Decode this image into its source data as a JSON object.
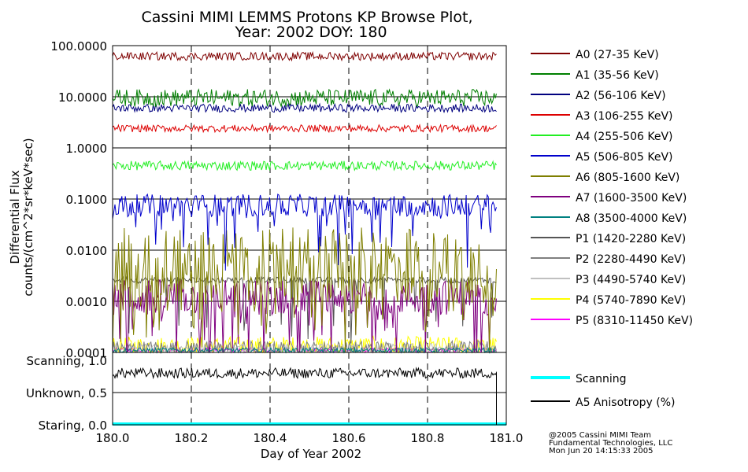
{
  "chart_data": {
    "type": "line",
    "title": "Cassini MIMI LEMMS Protons KP Browse Plot,",
    "subtitle": "Year: 2002 DOY: 180",
    "xlabel": "Day of Year 2002",
    "ylabel_line1": "Differential Flux",
    "ylabel_line2": "counts/(cm^2*sr*keV*sec)",
    "y_scale": "log",
    "ylim": [
      0.0001,
      100
    ],
    "xlim": [
      180.0,
      181.0
    ],
    "x_ticks": [
      "180.0",
      "180.2",
      "180.4",
      "180.6",
      "180.8",
      "181.0"
    ],
    "x_tick_values": [
      180.0,
      180.2,
      180.4,
      180.6,
      180.8,
      181.0
    ],
    "y_ticks": [
      "100.0000",
      "10.0000",
      "1.0000",
      "0.1000",
      "0.0100",
      "0.0010",
      "0.0001"
    ],
    "y_tick_values": [
      100,
      10,
      1,
      0.1,
      0.01,
      0.001,
      0.0001
    ],
    "x_end": 180.975,
    "series": [
      {
        "name": "A0 (27-35 KeV)",
        "color": "#7f0000",
        "level": 62,
        "spread": 0.08,
        "dips": 0
      },
      {
        "name": "A1 (35-56 KeV)",
        "color": "#007f00",
        "level": 9.5,
        "spread": 0.17,
        "dips": 0
      },
      {
        "name": "A2 (56-106 KeV)",
        "color": "#00007f",
        "level": 6.0,
        "spread": 0.08,
        "dips": 0
      },
      {
        "name": "A3 (106-255 KeV)",
        "color": "#dd0000",
        "level": 2.4,
        "spread": 0.07,
        "dips": 0
      },
      {
        "name": "A4 (255-506 KeV)",
        "color": "#22ee22",
        "level": 0.45,
        "spread": 0.09,
        "dips": 0
      },
      {
        "name": "A5 (506-805 KeV)",
        "color": "#0000cc",
        "level": 0.075,
        "spread": 0.22,
        "dips": 0.12
      },
      {
        "name": "A6 (805-1600 KeV)",
        "color": "#7f7f00",
        "level": 0.005,
        "spread": 0.75,
        "dips": 0.3
      },
      {
        "name": "A7 (1600-3500 KeV)",
        "color": "#7f007f",
        "level": 0.0012,
        "spread": 0.35,
        "dips": 0.25
      },
      {
        "name": "A8 (3500-4000 KeV)",
        "color": "#008080",
        "level": 0.00011,
        "spread": 0.05,
        "dips": 0
      },
      {
        "name": "P1 (1420-2280 KeV)",
        "color": "#555555",
        "level": 0.0026,
        "spread": 0.06,
        "dips": 0.1
      },
      {
        "name": "P2 (2280-4490 KeV)",
        "color": "#7f7f7f",
        "level": 0.00012,
        "spread": 0.15,
        "dips": 0
      },
      {
        "name": "P3 (4490-5740 KeV)",
        "color": "#c0c0c0",
        "level": 0.00012,
        "spread": 0.1,
        "dips": 0
      },
      {
        "name": "P4 (5740-7890 KeV)",
        "color": "#ffff00",
        "level": 0.00013,
        "spread": 0.2,
        "dips": 0
      },
      {
        "name": "P5 (8310-11450 KeV)",
        "color": "#ff00ff",
        "level": 0.00011,
        "spread": 0.05,
        "dips": 0
      }
    ],
    "bottom_panel": {
      "labels": [
        "Scanning, 1.0",
        "Unknown, 0.5",
        "Staring, 0.0"
      ],
      "label_values": [
        1.0,
        0.5,
        0.0
      ],
      "ylim": [
        0.0,
        1.0
      ],
      "series": [
        {
          "name": "Scanning",
          "color": "#00ffff",
          "value": 0.0
        },
        {
          "name": "A5 Anisotropy (%)",
          "color": "#000000",
          "level": 0.8,
          "spread": 0.08
        }
      ]
    }
  },
  "credits": {
    "line1": "@2005 Cassini MIMI Team",
    "line2": "Fundamental Technologies, LLC",
    "line3": "Mon Jun 20 14:15:33 2005"
  }
}
